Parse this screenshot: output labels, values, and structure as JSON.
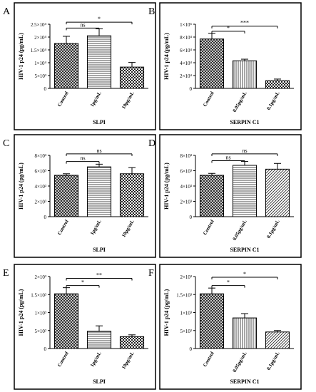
{
  "chart_data": [
    {
      "type": "bar",
      "panel_label": "A",
      "categories": [
        "Control",
        "1μg/mL",
        "10μg/mL"
      ],
      "values": [
        17500,
        20500,
        8300
      ],
      "errors": [
        2800,
        2700,
        1800
      ],
      "pattern": [
        "crosshatch",
        "horizontal",
        "checker"
      ],
      "ylabel": "HIV-1 p24 (pg/mL)",
      "xlabel": "SLPI",
      "ylim": [
        0,
        25000
      ],
      "ticks": [
        0,
        5000,
        10000,
        15000,
        20000,
        25000
      ],
      "tick_labels": [
        "0",
        "5×10³",
        "1×10⁴",
        "1.5×10⁴",
        "2×10⁴",
        "2.5×10⁴"
      ],
      "annotations": [
        {
          "text": "ns",
          "from": 0,
          "to": 1,
          "y": 23500
        },
        {
          "text": "*",
          "from": 0,
          "to": 2,
          "y": 25800
        }
      ]
    },
    {
      "type": "bar",
      "panel_label": "B",
      "categories": [
        "Control",
        "0.05μg/mL",
        "0.1μg/mL"
      ],
      "values": [
        77000,
        43000,
        12000
      ],
      "errors": [
        9000,
        2500,
        2500
      ],
      "pattern": [
        "crosshatch",
        "vertical",
        "checker"
      ],
      "ylabel": "HIV-1 p24 (pg/mL)",
      "xlabel": "SERPIN C1",
      "ylim": [
        0,
        100000
      ],
      "ticks": [
        0,
        20000,
        40000,
        60000,
        80000,
        100000
      ],
      "tick_labels": [
        "0",
        "2×10⁴",
        "4×10⁴",
        "6×10⁴",
        "8×10⁴",
        "1×10⁵"
      ],
      "annotations": [
        {
          "text": "*",
          "from": 0,
          "to": 1,
          "y": 89000
        },
        {
          "text": "***",
          "from": 0,
          "to": 2,
          "y": 97000
        }
      ]
    },
    {
      "type": "bar",
      "panel_label": "C",
      "categories": [
        "Control",
        "1μg/mL",
        "10μg/mL"
      ],
      "values": [
        5400,
        6500,
        5600
      ],
      "errors": [
        200,
        350,
        800
      ],
      "pattern": [
        "crosshatch",
        "horizontal",
        "checker"
      ],
      "ylabel": "HIV-1 p24 (pg/mL)",
      "xlabel": "SLPI",
      "ylim": [
        0,
        8000
      ],
      "ticks": [
        0,
        2000,
        4000,
        6000,
        8000
      ],
      "tick_labels": [
        "0",
        "2×10³",
        "4×10³",
        "6×10³",
        "8×10³"
      ],
      "annotations": [
        {
          "text": "ns",
          "from": 0,
          "to": 1,
          "y": 7200
        },
        {
          "text": "ns",
          "from": 0,
          "to": 2,
          "y": 8200
        }
      ]
    },
    {
      "type": "bar",
      "panel_label": "D",
      "categories": [
        "Control",
        "0.05μg/mL",
        "0.1μg/mL"
      ],
      "values": [
        5400,
        6700,
        6200
      ],
      "errors": [
        250,
        500,
        750
      ],
      "pattern": [
        "crosshatch",
        "horizontal",
        "diagonal"
      ],
      "ylabel": "HIV-1 p24 (pg/mL)",
      "xlabel": "SERPIN C1",
      "ylim": [
        0,
        8000
      ],
      "ticks": [
        0,
        2000,
        4000,
        6000,
        8000
      ],
      "tick_labels": [
        "0",
        "2×10³",
        "4×10³",
        "6×10³",
        "8×10³"
      ],
      "annotations": [
        {
          "text": "ns",
          "from": 0,
          "to": 1,
          "y": 7300
        },
        {
          "text": "ns",
          "from": 0,
          "to": 2,
          "y": 8200
        }
      ]
    },
    {
      "type": "bar",
      "panel_label": "E",
      "categories": [
        "Control",
        "1μg/mL",
        "10μg/mL"
      ],
      "values": [
        1520,
        480,
        330
      ],
      "errors": [
        170,
        150,
        50
      ],
      "pattern": [
        "crosshatch",
        "horizontal",
        "checker"
      ],
      "ylabel": "HIV-1 p24 (pg/mL)",
      "xlabel": "SLPI",
      "ylim": [
        0,
        2000
      ],
      "ticks": [
        0,
        500,
        1000,
        1500,
        2000
      ],
      "tick_labels": [
        "0",
        "5×10²",
        "1×10³",
        "1.5×10³",
        "2×10³"
      ],
      "annotations": [
        {
          "text": "*",
          "from": 0,
          "to": 1,
          "y": 1750
        },
        {
          "text": "**",
          "from": 0,
          "to": 2,
          "y": 1950
        }
      ]
    },
    {
      "type": "bar",
      "panel_label": "F",
      "categories": [
        "Control",
        "0.05μg/mL",
        "0.1μg/mL"
      ],
      "values": [
        1520,
        850,
        460
      ],
      "errors": [
        160,
        120,
        40
      ],
      "pattern": [
        "crosshatch",
        "vertical",
        "diagonal"
      ],
      "ylabel": "HIV-1 p24 (pg/mL)",
      "xlabel": "SERPIN C1",
      "ylim": [
        0,
        2000
      ],
      "ticks": [
        0,
        500,
        1000,
        1500,
        2000
      ],
      "tick_labels": [
        "0",
        "5×10²",
        "1×10³",
        "1.5×10³",
        "2×10³"
      ],
      "annotations": [
        {
          "text": "*",
          "from": 0,
          "to": 1,
          "y": 1750
        },
        {
          "text": "*",
          "from": 0,
          "to": 2,
          "y": 1980
        }
      ]
    }
  ]
}
